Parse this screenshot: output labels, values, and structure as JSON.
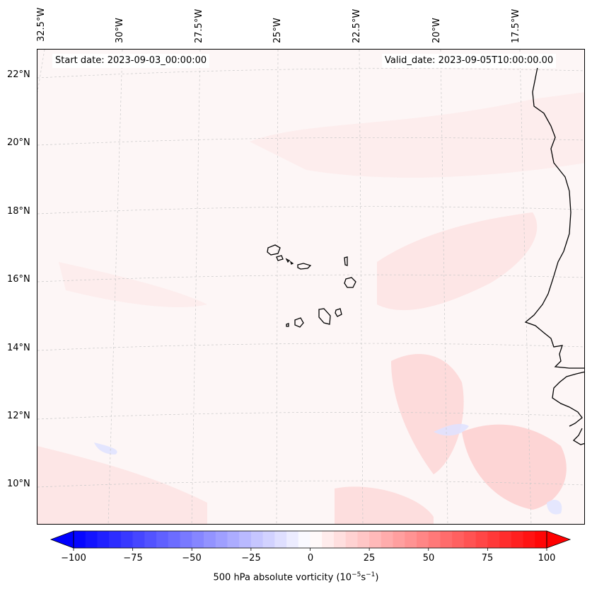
{
  "header": {
    "start_date": "Start date: 2023-09-03_00:00:00",
    "valid_date": "Valid_date: 2023-09-05T10:00:00.00"
  },
  "axes": {
    "lon_labels": [
      "32.5°W",
      "30°W",
      "27.5°W",
      "25°W",
      "22.5°W",
      "20°W",
      "17.5°W"
    ],
    "lat_labels": [
      "22°N",
      "20°N",
      "18°N",
      "16°N",
      "14°N",
      "12°N",
      "10°N"
    ]
  },
  "colorbar": {
    "title_prefix": "500 hPa absolute vorticity (10",
    "title_exp1": "−5",
    "title_mid": "s",
    "title_exp2": "−1",
    "title_suffix": ")",
    "ticks": [
      "−100",
      "−75",
      "−50",
      "−25",
      "0",
      "25",
      "50",
      "75",
      "100"
    ],
    "range": [
      -100,
      100
    ],
    "neg_color": "#0000ff",
    "pos_color": "#ff0000"
  },
  "colors": {
    "background_field": "#fdf6f6",
    "coastline": "#000000",
    "gridline": "#c8c8c8"
  }
}
